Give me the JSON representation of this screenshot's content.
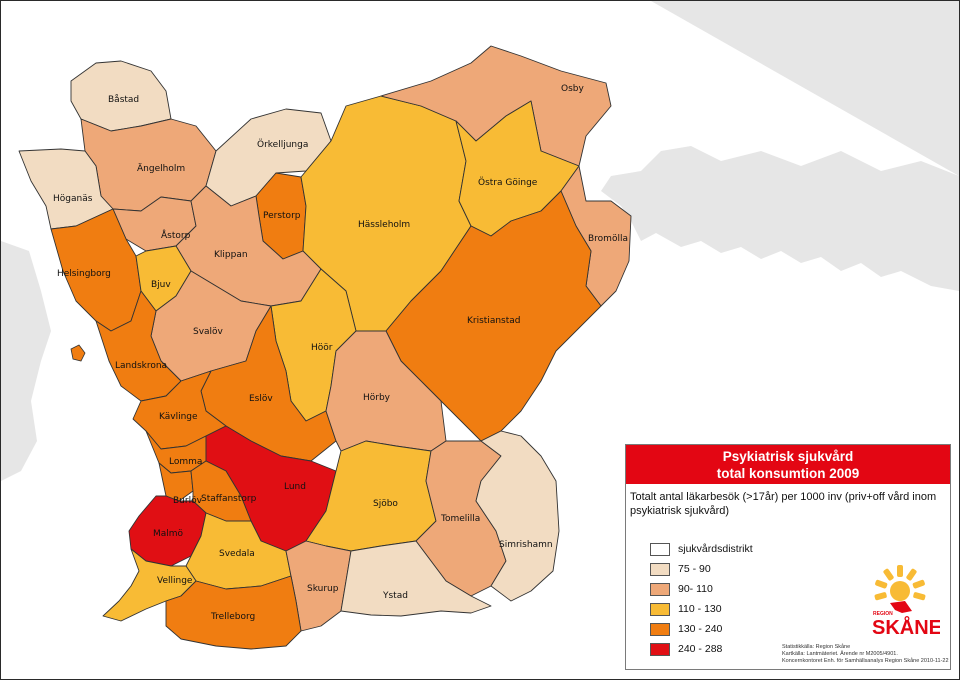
{
  "legend": {
    "title_line1": "Psykiatrisk sjukvård",
    "title_line2": "total konsumtion 2009",
    "subtitle": "Totalt antal läkarbesök (>17år) per 1000 inv (priv+off vård inom psykiatrisk sjukvård)",
    "items": [
      {
        "label": "sjukvårdsdistrikt",
        "color": "#ffffff"
      },
      {
        "label": "75 - 90",
        "color": "#f2dcc2"
      },
      {
        "label": "90- 110",
        "color": "#eea878"
      },
      {
        "label": "110 - 130",
        "color": "#f8bb35"
      },
      {
        "label": "130 - 240",
        "color": "#f07d11"
      },
      {
        "label": "240 - 288",
        "color": "#e00f14"
      }
    ],
    "source_lines": [
      "Statistikkälla: Region Skåne",
      "Kartkälla: Lantmäteriet. Ärende nr M2005/4901.",
      "Koncernkontoret Enh. för Samhällsanalys Region Skåne 2010-11-22"
    ]
  },
  "logo": {
    "region": "REGION",
    "name": "SKÅNE",
    "color": "#e30613",
    "sun_color": "#f8bb35"
  },
  "municipalities": [
    {
      "name": "Båstad",
      "klass": "75 - 90"
    },
    {
      "name": "Ängelholm",
      "klass": "90- 110"
    },
    {
      "name": "Örkelljunga",
      "klass": "75 - 90"
    },
    {
      "name": "Höganäs",
      "klass": "75 - 90"
    },
    {
      "name": "Perstorp",
      "klass": "130 - 240"
    },
    {
      "name": "Hässleholm",
      "klass": "110 - 130"
    },
    {
      "name": "Osby",
      "klass": "90- 110"
    },
    {
      "name": "Östra Göinge",
      "klass": "110 - 130"
    },
    {
      "name": "Bromölla",
      "klass": "90- 110"
    },
    {
      "name": "Åstorp",
      "klass": "90- 110"
    },
    {
      "name": "Klippan",
      "klass": "90- 110"
    },
    {
      "name": "Helsingborg",
      "klass": "130 - 240"
    },
    {
      "name": "Bjuv",
      "klass": "110 - 130"
    },
    {
      "name": "Kristianstad",
      "klass": "130 - 240"
    },
    {
      "name": "Svalöv",
      "klass": "90- 110"
    },
    {
      "name": "Höör",
      "klass": "110 - 130"
    },
    {
      "name": "Landskrona",
      "klass": "130 - 240"
    },
    {
      "name": "Eslöv",
      "klass": "130 - 240"
    },
    {
      "name": "Hörby",
      "klass": "90- 110"
    },
    {
      "name": "Kävlinge",
      "klass": "130 - 240"
    },
    {
      "name": "Lomma",
      "klass": "130 - 240"
    },
    {
      "name": "Lund",
      "klass": "240 - 288"
    },
    {
      "name": "Burlöv",
      "klass": "130 - 240"
    },
    {
      "name": "Staffanstorp",
      "klass": "130 - 240"
    },
    {
      "name": "Sjöbo",
      "klass": "110 - 130"
    },
    {
      "name": "Tomelilla",
      "klass": "90- 110"
    },
    {
      "name": "Malmö",
      "klass": "240 - 288"
    },
    {
      "name": "Svedala",
      "klass": "110 - 130"
    },
    {
      "name": "Simrishamn",
      "klass": "75 - 90"
    },
    {
      "name": "Vellinge",
      "klass": "110 - 130"
    },
    {
      "name": "Skurup",
      "klass": "90- 110"
    },
    {
      "name": "Ystad",
      "klass": "75 - 90"
    },
    {
      "name": "Trelleborg",
      "klass": "130 - 240"
    }
  ]
}
